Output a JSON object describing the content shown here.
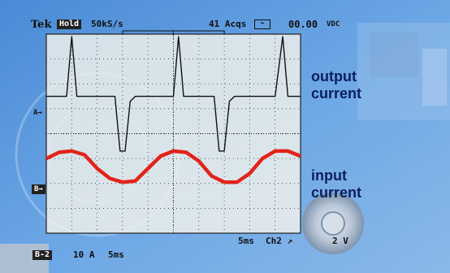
{
  "header": {
    "brand": "Tek",
    "hold_badge": "Hold",
    "sample_rate": "50kS/s",
    "acquisitions": "41 Acqs",
    "readout": "00.00",
    "readout_unit": "VDC"
  },
  "markers": {
    "ch_a": "A",
    "ch_b": "B"
  },
  "footer": {
    "ch_badge": "B-2",
    "scale_current": "10 A",
    "scale_time": "5ms",
    "time_div": "5ms",
    "channel": "Ch2",
    "voltage": "2 V"
  },
  "labels": {
    "output_line1": "output",
    "output_line2": "current",
    "input_line1": "input",
    "input_line2": "current"
  },
  "colors": {
    "background_blue": "#5b9be0",
    "screen": "#f3f3ec",
    "trace_a": "#111111",
    "trace_b": "#e2231a",
    "label_text": "#0b1f5c"
  },
  "chart_data": {
    "type": "line",
    "title": "",
    "xlabel": "",
    "ylabel": "",
    "grid": true,
    "x_divisions": 10,
    "y_divisions": 8,
    "series": [
      {
        "name": "",
        "description_key": "trace_a",
        "x": [
          0.0,
          0.5,
          0.8,
          1.0,
          1.2,
          1.5,
          2.0,
          2.7,
          2.9,
          3.1,
          3.3,
          3.5,
          4.0,
          4.5,
          5.0,
          5.2,
          5.4,
          5.6,
          6.0,
          6.6,
          6.8,
          7.0,
          7.2,
          7.4,
          8.0,
          8.5,
          9.0,
          9.3,
          9.5,
          9.7,
          10.0
        ],
        "y": [
          0.0,
          0.0,
          0.0,
          2.4,
          0.0,
          0.0,
          0.0,
          0.0,
          -2.2,
          -2.2,
          -0.2,
          0.0,
          0.0,
          0.0,
          0.0,
          2.4,
          0.0,
          0.0,
          0.0,
          0.0,
          -2.2,
          -2.2,
          -0.2,
          0.0,
          0.0,
          0.0,
          0.0,
          2.4,
          0.0,
          0.0,
          0.0
        ]
      },
      {
        "name": "",
        "description_key": "trace_b",
        "x": [
          0.0,
          0.5,
          1.0,
          1.5,
          2.0,
          2.5,
          3.0,
          3.5,
          4.0,
          4.5,
          5.0,
          5.5,
          6.0,
          6.5,
          7.0,
          7.5,
          8.0,
          8.5,
          9.0,
          9.5,
          10.0
        ],
        "y": [
          0.6,
          0.85,
          0.9,
          0.75,
          0.2,
          -0.2,
          -0.35,
          -0.3,
          0.2,
          0.7,
          0.9,
          0.85,
          0.5,
          -0.1,
          -0.35,
          -0.35,
          0.0,
          0.6,
          0.9,
          0.9,
          0.7
        ]
      }
    ]
  }
}
